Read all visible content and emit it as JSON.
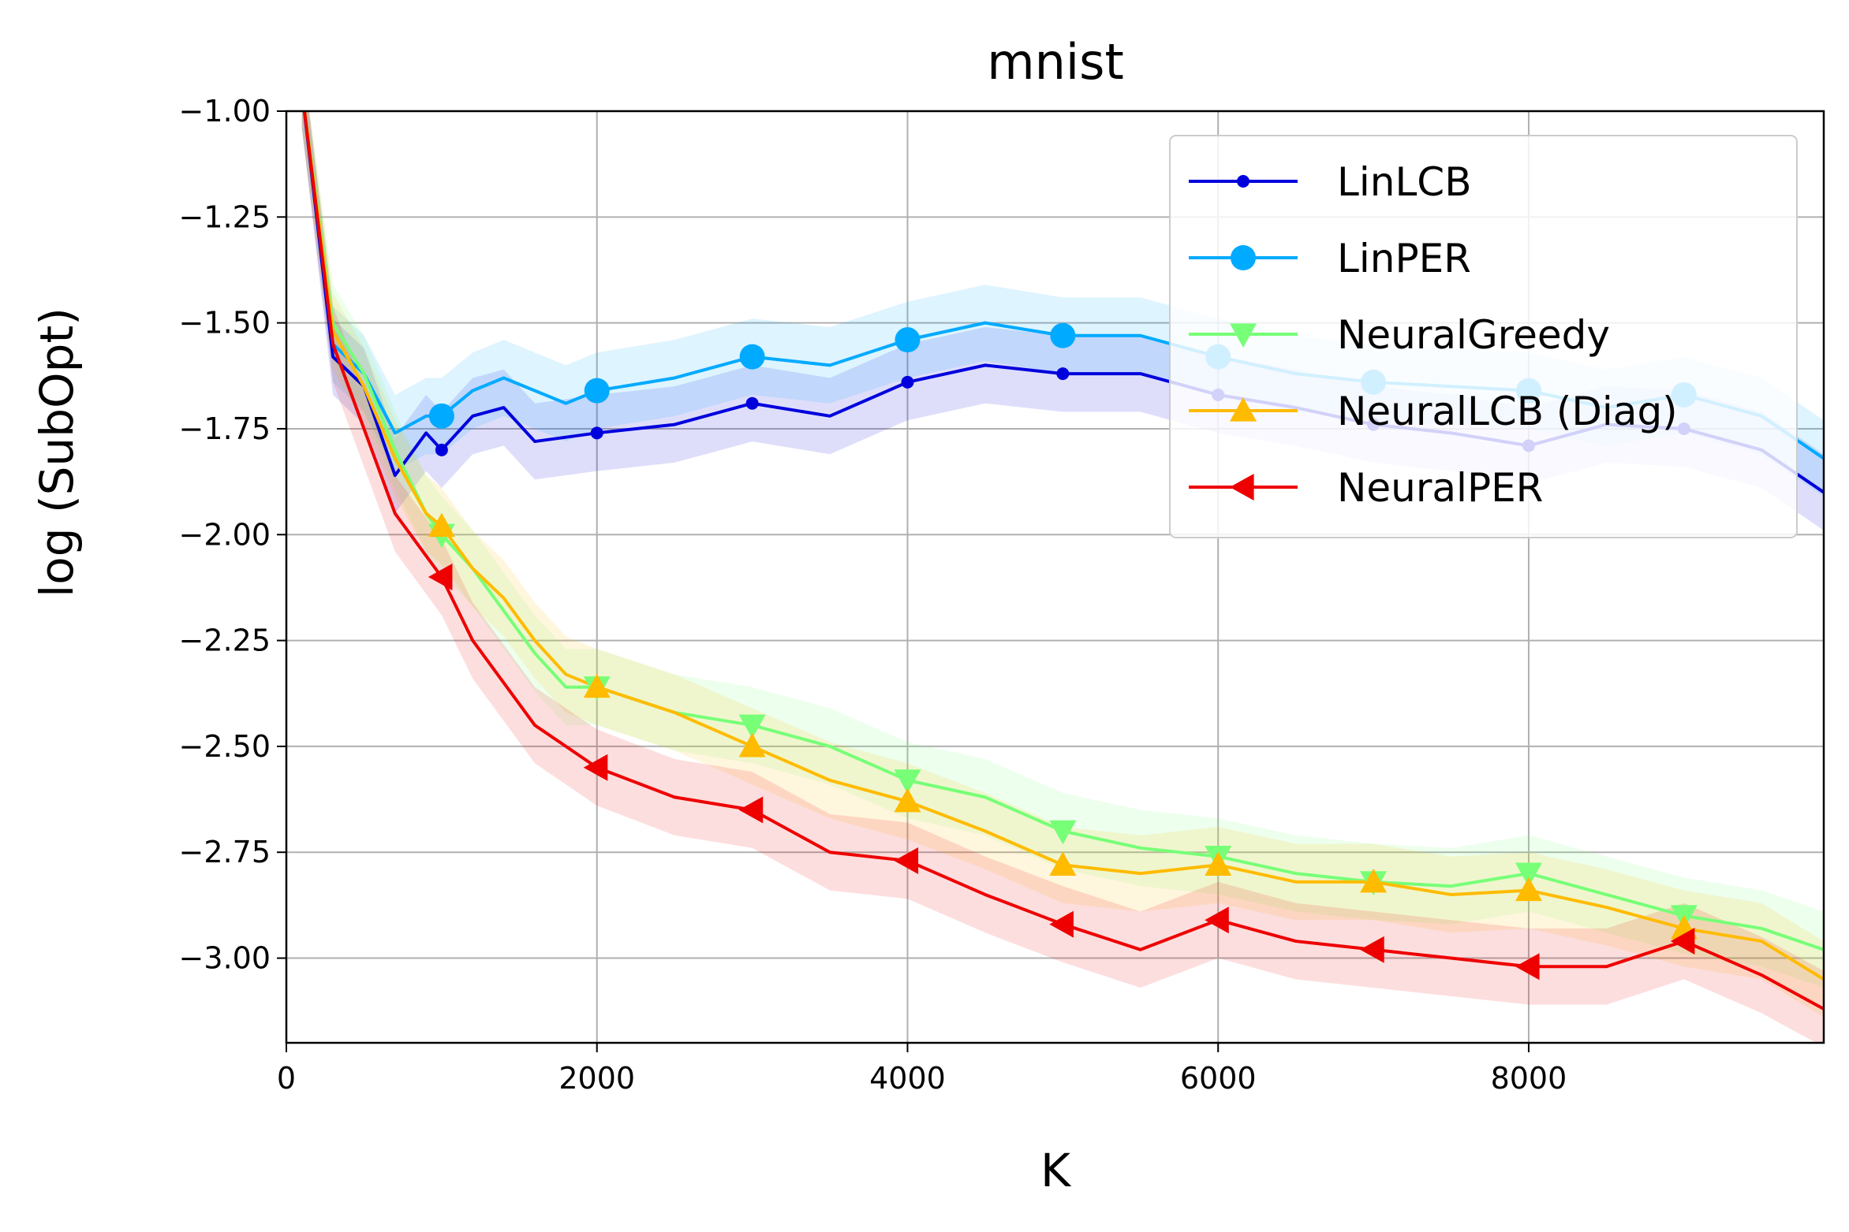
{
  "chart_data": {
    "type": "line",
    "title": "mnist",
    "xlabel": "K",
    "ylabel": "log (SubOpt)",
    "xlim": [
      0,
      9900
    ],
    "ylim": [
      -3.2,
      -1.0
    ],
    "xticks": [
      0,
      2000,
      4000,
      6000,
      8000
    ],
    "xtick_labels": [
      "0",
      "2000",
      "4000",
      "6000",
      "8000"
    ],
    "yticks": [
      -1.0,
      -1.25,
      -1.5,
      -1.75,
      -2.0,
      -2.25,
      -2.5,
      -2.75,
      -3.0
    ],
    "ytick_labels": [
      "−1.00",
      "−1.25",
      "−1.50",
      "−1.75",
      "−2.00",
      "−2.25",
      "−2.50",
      "−2.75",
      "−3.00"
    ],
    "grid": true,
    "legend_position": "top-right",
    "x": [
      100,
      300,
      500,
      700,
      900,
      1000,
      1200,
      1400,
      1600,
      1800,
      2000,
      2500,
      3000,
      3500,
      4000,
      4500,
      5000,
      5500,
      6000,
      6500,
      7000,
      7500,
      8000,
      8500,
      9000,
      9500,
      9900
    ],
    "marker_x": [
      1000,
      2000,
      3000,
      4000,
      5000,
      6000,
      7000,
      8000,
      9000
    ],
    "band_width": 0.09,
    "series": [
      {
        "name": "LinLCB",
        "color": "#0000dd",
        "marker": "small-circle",
        "y": [
          -0.95,
          -1.58,
          -1.65,
          -1.86,
          -1.76,
          -1.8,
          -1.72,
          -1.7,
          -1.78,
          -1.77,
          -1.76,
          -1.74,
          -1.69,
          -1.72,
          -1.64,
          -1.6,
          -1.62,
          -1.62,
          -1.67,
          -1.7,
          -1.74,
          -1.76,
          -1.79,
          -1.74,
          -1.75,
          -1.8,
          -1.9
        ]
      },
      {
        "name": "LinPER",
        "color": "#00aaff",
        "marker": "circle",
        "y": [
          -0.95,
          -1.55,
          -1.62,
          -1.76,
          -1.72,
          -1.72,
          -1.66,
          -1.63,
          -1.66,
          -1.69,
          -1.66,
          -1.63,
          -1.58,
          -1.6,
          -1.54,
          -1.5,
          -1.53,
          -1.53,
          -1.58,
          -1.62,
          -1.64,
          -1.65,
          -1.66,
          -1.7,
          -1.67,
          -1.72,
          -1.82
        ]
      },
      {
        "name": "NeuralGreedy",
        "color": "#77ff77",
        "marker": "triangle-down",
        "y": [
          -0.95,
          -1.5,
          -1.62,
          -1.8,
          -1.95,
          -2.0,
          -2.08,
          -2.18,
          -2.28,
          -2.36,
          -2.36,
          -2.42,
          -2.45,
          -2.5,
          -2.58,
          -2.62,
          -2.7,
          -2.74,
          -2.76,
          -2.8,
          -2.82,
          -2.83,
          -2.8,
          -2.85,
          -2.9,
          -2.93,
          -2.98
        ]
      },
      {
        "name": "NeuralLCB (Diag)",
        "color": "#ffbb00",
        "marker": "triangle-up",
        "y": [
          -0.95,
          -1.52,
          -1.65,
          -1.82,
          -1.95,
          -1.98,
          -2.08,
          -2.15,
          -2.25,
          -2.33,
          -2.36,
          -2.42,
          -2.5,
          -2.58,
          -2.63,
          -2.7,
          -2.78,
          -2.8,
          -2.78,
          -2.82,
          -2.82,
          -2.85,
          -2.84,
          -2.88,
          -2.93,
          -2.96,
          -3.05
        ]
      },
      {
        "name": "NeuralPER",
        "color": "#ee0000",
        "marker": "triangle-left",
        "y": [
          -0.95,
          -1.55,
          -1.75,
          -1.95,
          -2.05,
          -2.1,
          -2.25,
          -2.35,
          -2.45,
          -2.5,
          -2.55,
          -2.62,
          -2.65,
          -2.75,
          -2.77,
          -2.85,
          -2.92,
          -2.98,
          -2.91,
          -2.96,
          -2.98,
          -3.0,
          -3.02,
          -3.02,
          -2.96,
          -3.04,
          -3.12
        ]
      }
    ]
  }
}
